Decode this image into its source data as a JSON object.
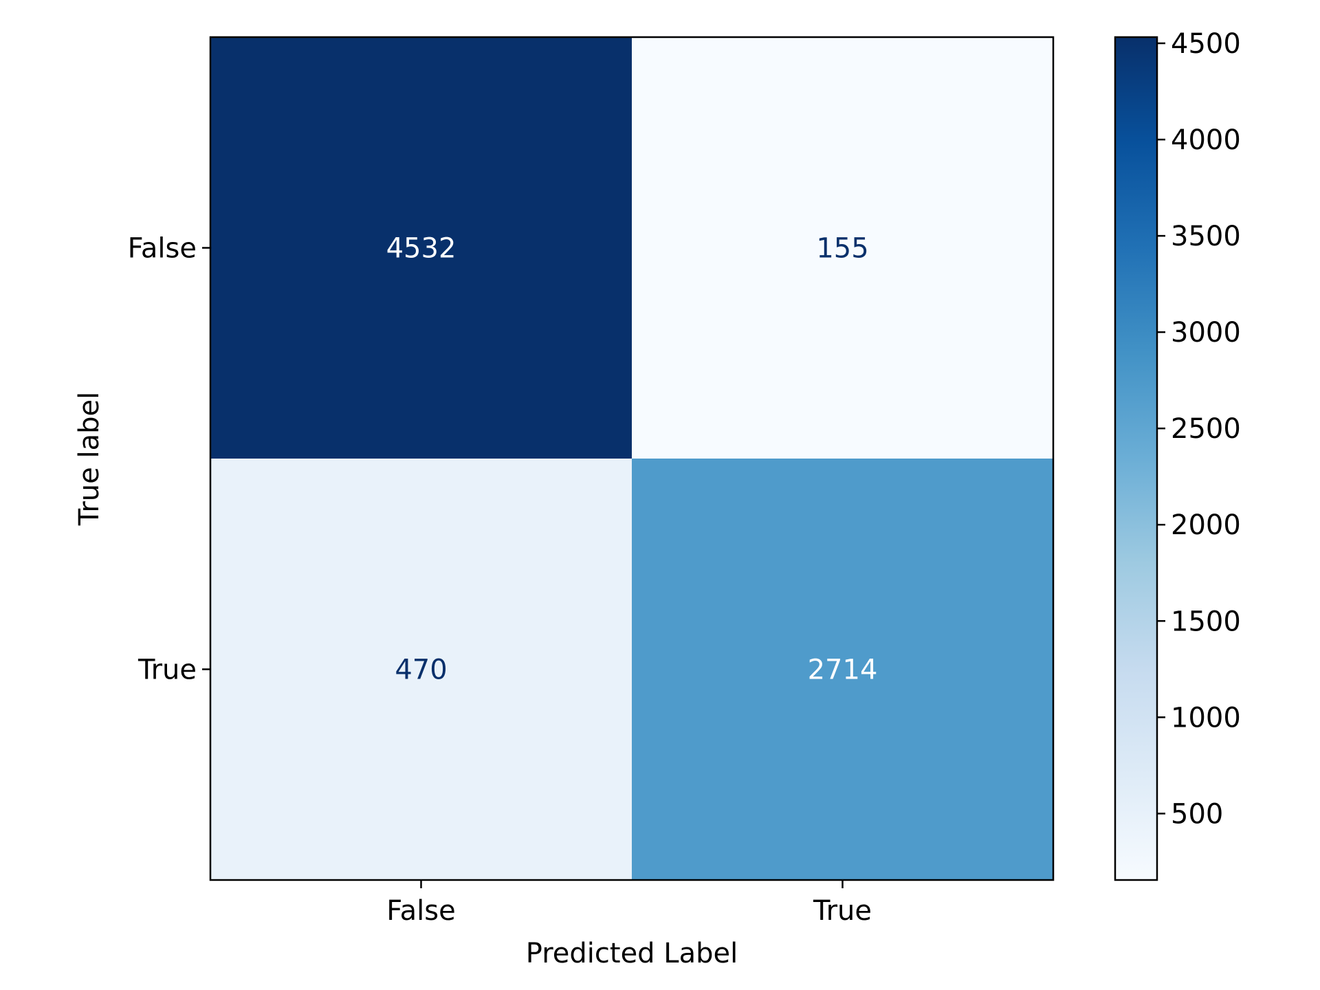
{
  "chart_data": {
    "type": "heatmap",
    "title": "",
    "xlabel": "Predicted Label",
    "ylabel": "True label",
    "x_categories": [
      "False",
      "True"
    ],
    "y_categories": [
      "False",
      "True"
    ],
    "values": [
      [
        4532,
        155
      ],
      [
        470,
        2714
      ]
    ],
    "colormap": "Blues",
    "colorbar": {
      "range": [
        155,
        4532
      ],
      "ticks": [
        "500",
        "1000",
        "1500",
        "2000",
        "2500",
        "3000",
        "3500",
        "4000",
        "4500"
      ]
    },
    "grid": false,
    "cell_labels": [
      "4532",
      "155",
      "470",
      "2714"
    ]
  }
}
